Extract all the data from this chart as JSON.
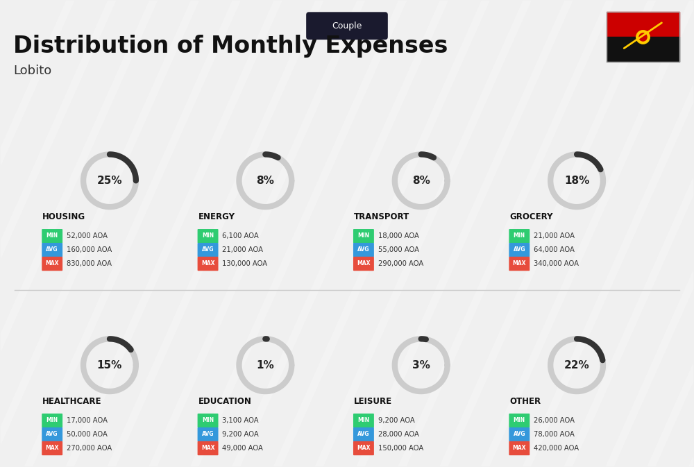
{
  "title": "Distribution of Monthly Expenses",
  "subtitle": "Couple",
  "city": "Lobito",
  "bg_color": "#f0f0f0",
  "categories": [
    {
      "name": "HOUSING",
      "pct": 25,
      "min": "52,000 AOA",
      "avg": "160,000 AOA",
      "max": "830,000 AOA",
      "row": 0,
      "col": 0
    },
    {
      "name": "ENERGY",
      "pct": 8,
      "min": "6,100 AOA",
      "avg": "21,000 AOA",
      "max": "130,000 AOA",
      "row": 0,
      "col": 1
    },
    {
      "name": "TRANSPORT",
      "pct": 8,
      "min": "18,000 AOA",
      "avg": "55,000 AOA",
      "max": "290,000 AOA",
      "row": 0,
      "col": 2
    },
    {
      "name": "GROCERY",
      "pct": 18,
      "min": "21,000 AOA",
      "avg": "64,000 AOA",
      "max": "340,000 AOA",
      "row": 0,
      "col": 3
    },
    {
      "name": "HEALTHCARE",
      "pct": 15,
      "min": "17,000 AOA",
      "avg": "50,000 AOA",
      "max": "270,000 AOA",
      "row": 1,
      "col": 0
    },
    {
      "name": "EDUCATION",
      "pct": 1,
      "min": "3,100 AOA",
      "avg": "9,200 AOA",
      "max": "49,000 AOA",
      "row": 1,
      "col": 1
    },
    {
      "name": "LEISURE",
      "pct": 3,
      "min": "9,200 AOA",
      "avg": "28,000 AOA",
      "max": "150,000 AOA",
      "row": 1,
      "col": 2
    },
    {
      "name": "OTHER",
      "pct": 22,
      "min": "26,000 AOA",
      "avg": "78,000 AOA",
      "max": "420,000 AOA",
      "row": 1,
      "col": 3
    }
  ],
  "min_color": "#2ecc71",
  "avg_color": "#3498db",
  "max_color": "#e74c3c",
  "label_color": "#ffffff",
  "arc_color": "#333333",
  "arc_bg_color": "#cccccc"
}
